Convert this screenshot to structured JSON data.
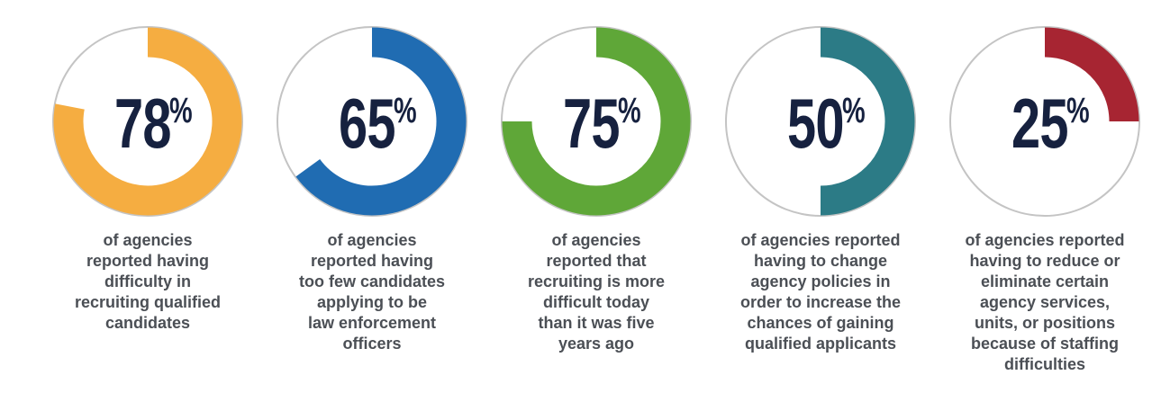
{
  "chart_data": {
    "type": "donut",
    "stats": [
      {
        "value": 78,
        "number": "78",
        "symbol": "%",
        "color": "#f5ad41",
        "description": "of agencies\nreported having\ndifficulty in\nrecruiting qualified\ncandidates"
      },
      {
        "value": 65,
        "number": "65",
        "symbol": "%",
        "color": "#206cb2",
        "description": "of agencies\nreported having\ntoo few candidates\napplying to be\nlaw enforcement\nofficers"
      },
      {
        "value": 75,
        "number": "75",
        "symbol": "%",
        "color": "#5fa738",
        "description": "of agencies\nreported that\nrecruiting is more\ndifficult today\nthan it was five\nyears ago"
      },
      {
        "value": 50,
        "number": "50",
        "symbol": "%",
        "color": "#2c7b86",
        "description": "of agencies reported\nhaving to change\nagency policies in\norder to increase the\nchances of gaining\nqualified applicants"
      },
      {
        "value": 25,
        "number": "25",
        "symbol": "%",
        "color": "#a72532",
        "description": "of agencies reported\nhaving to reduce or\neliminate certain\nagency services,\nunits, or positions\nbecause of staffing\ndifficulties"
      }
    ],
    "track_color": "#c4c4c4",
    "number_color": "#16213f"
  }
}
